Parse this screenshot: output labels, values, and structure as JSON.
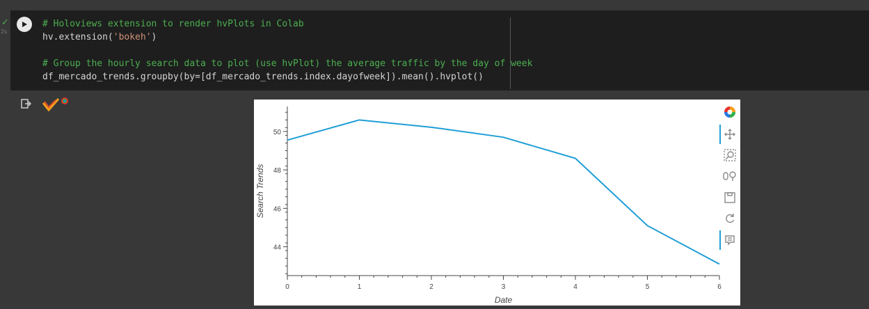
{
  "cell": {
    "exec_time": "2s",
    "lines": [
      {
        "kind": "comment",
        "text": "# Holoviews extension to render hvPlots in Colab"
      },
      {
        "kind": "code",
        "pre": "hv.extension(",
        "str": "'bokeh'",
        "post": ")"
      },
      {
        "kind": "blank",
        "text": ""
      },
      {
        "kind": "comment",
        "text": "# Group the hourly search data to plot (use hvPlot) the average traffic by the day of week"
      },
      {
        "kind": "code",
        "pre": "df_mercado_trends.groupby(by=[df_mercado_trends.index.dayofweek]).mean().hvplot()",
        "str": "",
        "post": ""
      }
    ]
  },
  "toolbar": {
    "tools": [
      "bokeh-logo-icon",
      "pan-icon",
      "box-zoom-icon",
      "wheel-zoom-icon",
      "save-icon",
      "reset-icon",
      "hover-icon"
    ]
  },
  "colors": {
    "line": "#1f9ed6",
    "comment": "#4caf50",
    "string": "#ce9178"
  },
  "chart_data": {
    "type": "line",
    "x": [
      0,
      1,
      2,
      3,
      4,
      5,
      6
    ],
    "series": [
      {
        "values": [
          49.55,
          50.6,
          50.22,
          49.7,
          48.6,
          45.1,
          43.1
        ]
      }
    ],
    "xlabel": "Date",
    "ylabel": "Search Trends",
    "xlim": [
      0,
      6
    ],
    "ylim": [
      42.5,
      51.3
    ],
    "xticks": [
      "0",
      "1",
      "2",
      "3",
      "4",
      "5",
      "6"
    ],
    "yticks": [
      "44",
      "46",
      "48",
      "50"
    ],
    "grid": false
  }
}
